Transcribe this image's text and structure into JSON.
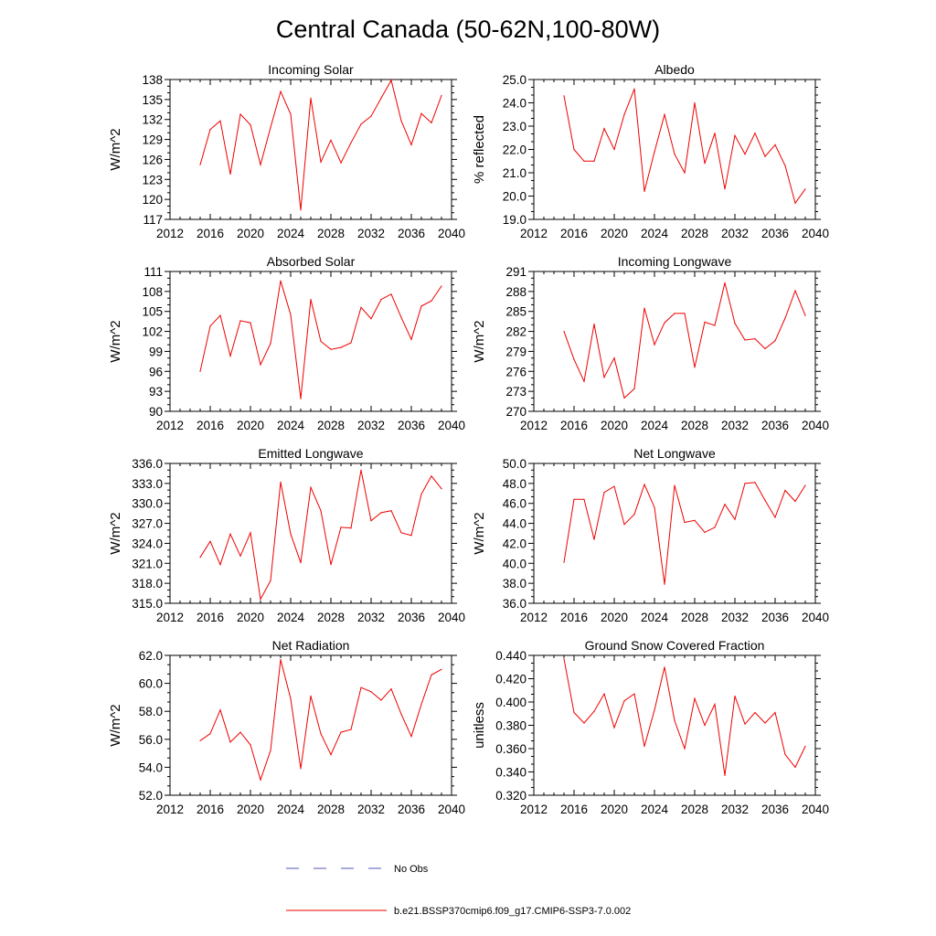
{
  "figure": {
    "title": "Central Canada (50-62N,100-80W)",
    "legend": {
      "placement": "bottom",
      "entries": [
        {
          "label": "No Obs",
          "color": "#5555bb",
          "style": "dashed"
        },
        {
          "label": "b.e21.BSSP370cmip6.f09_g17.CMIP6-SSP3-7.0.002",
          "color": "#ee0000",
          "style": "solid"
        }
      ]
    }
  },
  "chart_data": [
    {
      "type": "line",
      "title": "Incoming Solar",
      "ylabel": "W/m^2",
      "xlim": [
        2012,
        2040
      ],
      "xticks": [
        "2012",
        "2016",
        "2020",
        "2024",
        "2028",
        "2032",
        "2036",
        "2040"
      ],
      "ylim": [
        117,
        138
      ],
      "yticks": [
        "117",
        "120",
        "123",
        "126",
        "129",
        "132",
        "135",
        "138"
      ],
      "series": [
        {
          "color": "#ee0000",
          "x": [
            2015,
            2016,
            2017,
            2018,
            2019,
            2020,
            2021,
            2022,
            2023,
            2024,
            2025,
            2026,
            2027,
            2028,
            2029,
            2030,
            2031,
            2032,
            2033,
            2034,
            2035,
            2036,
            2037,
            2038,
            2039
          ],
          "y": [
            125.2,
            130.5,
            131.8,
            123.8,
            132.8,
            131.2,
            125.2,
            130.8,
            136.2,
            132.8,
            118.4,
            135.2,
            125.6,
            128.9,
            125.5,
            128.5,
            131.3,
            132.5,
            135.2,
            137.9,
            131.8,
            128.2,
            132.9,
            131.5,
            135.6
          ]
        }
      ]
    },
    {
      "type": "line",
      "title": "Albedo",
      "ylabel": "% reflected",
      "xlim": [
        2012,
        2040
      ],
      "xticks": [
        "2012",
        "2016",
        "2020",
        "2024",
        "2028",
        "2032",
        "2036",
        "2040"
      ],
      "ylim": [
        19.0,
        25.0
      ],
      "yticks": [
        "19.0",
        "20.0",
        "21.0",
        "22.0",
        "23.0",
        "24.0",
        "25.0"
      ],
      "series": [
        {
          "color": "#ee0000",
          "x": [
            2015,
            2016,
            2017,
            2018,
            2019,
            2020,
            2021,
            2022,
            2023,
            2024,
            2025,
            2026,
            2027,
            2028,
            2029,
            2030,
            2031,
            2032,
            2033,
            2034,
            2035,
            2036,
            2037,
            2038,
            2039
          ],
          "y": [
            24.3,
            22.0,
            21.5,
            21.5,
            22.9,
            22.0,
            23.5,
            24.6,
            20.2,
            21.9,
            23.5,
            21.8,
            21.0,
            24.0,
            21.4,
            22.7,
            20.3,
            22.6,
            21.8,
            22.7,
            21.7,
            22.2,
            21.3,
            19.7,
            20.3
          ]
        }
      ]
    },
    {
      "type": "line",
      "title": "Absorbed Solar",
      "ylabel": "W/m^2",
      "xlim": [
        2012,
        2040
      ],
      "xticks": [
        "2012",
        "2016",
        "2020",
        "2024",
        "2028",
        "2032",
        "2036",
        "2040"
      ],
      "ylim": [
        90,
        111
      ],
      "yticks": [
        "90",
        "93",
        "96",
        "99",
        "102",
        "105",
        "108",
        "111"
      ],
      "series": [
        {
          "color": "#ee0000",
          "x": [
            2015,
            2016,
            2017,
            2018,
            2019,
            2020,
            2021,
            2022,
            2023,
            2024,
            2025,
            2026,
            2027,
            2028,
            2029,
            2030,
            2031,
            2032,
            2033,
            2034,
            2035,
            2036,
            2037,
            2038,
            2039
          ],
          "y": [
            96.0,
            102.8,
            104.4,
            98.3,
            103.6,
            103.3,
            97.0,
            100.2,
            109.6,
            104.5,
            91.9,
            106.8,
            100.5,
            99.3,
            99.6,
            100.3,
            105.6,
            103.9,
            106.8,
            107.6,
            104.1,
            100.8,
            105.8,
            106.6,
            108.8
          ]
        }
      ]
    },
    {
      "type": "line",
      "title": "Incoming Longwave",
      "ylabel": "W/m^2",
      "xlim": [
        2012,
        2040
      ],
      "xticks": [
        "2012",
        "2016",
        "2020",
        "2024",
        "2028",
        "2032",
        "2036",
        "2040"
      ],
      "ylim": [
        270,
        291
      ],
      "yticks": [
        "270",
        "273",
        "276",
        "279",
        "282",
        "285",
        "288",
        "291"
      ],
      "series": [
        {
          "color": "#ee0000",
          "x": [
            2015,
            2016,
            2017,
            2018,
            2019,
            2020,
            2021,
            2022,
            2023,
            2024,
            2025,
            2026,
            2027,
            2028,
            2029,
            2030,
            2031,
            2032,
            2033,
            2034,
            2035,
            2036,
            2037,
            2038,
            2039
          ],
          "y": [
            282.0,
            277.8,
            274.5,
            283.1,
            275.1,
            278.0,
            272.0,
            273.4,
            285.5,
            280.0,
            283.3,
            284.7,
            284.7,
            276.6,
            283.4,
            282.9,
            289.3,
            283.2,
            280.7,
            280.9,
            279.4,
            280.6,
            284.0,
            288.1,
            284.4
          ]
        }
      ]
    },
    {
      "type": "line",
      "title": "Emitted Longwave",
      "ylabel": "W/m^2",
      "xlim": [
        2012,
        2040
      ],
      "xticks": [
        "2012",
        "2016",
        "2020",
        "2024",
        "2028",
        "2032",
        "2036",
        "2040"
      ],
      "ylim": [
        315.0,
        336.0
      ],
      "yticks": [
        "315.0",
        "318.0",
        "321.0",
        "324.0",
        "327.0",
        "330.0",
        "333.0",
        "336.0"
      ],
      "series": [
        {
          "color": "#ee0000",
          "x": [
            2015,
            2016,
            2017,
            2018,
            2019,
            2020,
            2021,
            2022,
            2023,
            2024,
            2025,
            2026,
            2027,
            2028,
            2029,
            2030,
            2031,
            2032,
            2033,
            2034,
            2035,
            2036,
            2037,
            2038,
            2039
          ],
          "y": [
            321.9,
            324.3,
            320.8,
            325.4,
            322.1,
            325.6,
            315.6,
            318.4,
            333.2,
            325.4,
            321.1,
            332.4,
            328.9,
            320.8,
            326.4,
            326.3,
            335.0,
            327.4,
            328.6,
            328.9,
            325.6,
            325.2,
            331.4,
            334.1,
            332.2
          ]
        }
      ]
    },
    {
      "type": "line",
      "title": "Net Longwave",
      "ylabel": "W/m^2",
      "xlim": [
        2012,
        2040
      ],
      "xticks": [
        "2012",
        "2016",
        "2020",
        "2024",
        "2028",
        "2032",
        "2036",
        "2040"
      ],
      "ylim": [
        36.0,
        50.0
      ],
      "yticks": [
        "36.0",
        "38.0",
        "40.0",
        "42.0",
        "44.0",
        "46.0",
        "48.0",
        "50.0"
      ],
      "series": [
        {
          "color": "#ee0000",
          "x": [
            2015,
            2016,
            2017,
            2018,
            2019,
            2020,
            2021,
            2022,
            2023,
            2024,
            2025,
            2026,
            2027,
            2028,
            2029,
            2030,
            2031,
            2032,
            2033,
            2034,
            2035,
            2036,
            2037,
            2038,
            2039
          ],
          "y": [
            40.1,
            46.4,
            46.4,
            42.4,
            47.1,
            47.7,
            43.9,
            44.9,
            47.9,
            45.6,
            37.9,
            47.8,
            44.1,
            44.3,
            43.1,
            43.6,
            45.9,
            44.4,
            48.0,
            48.1,
            46.3,
            44.6,
            47.3,
            46.2,
            47.8
          ]
        }
      ]
    },
    {
      "type": "line",
      "title": "Net Radiation",
      "ylabel": "W/m^2",
      "xlim": [
        2012,
        2040
      ],
      "xticks": [
        "2012",
        "2016",
        "2020",
        "2024",
        "2028",
        "2032",
        "2036",
        "2040"
      ],
      "ylim": [
        52.0,
        62.0
      ],
      "yticks": [
        "52.0",
        "54.0",
        "56.0",
        "58.0",
        "60.0",
        "62.0"
      ],
      "series": [
        {
          "color": "#ee0000",
          "x": [
            2015,
            2016,
            2017,
            2018,
            2019,
            2020,
            2021,
            2022,
            2023,
            2024,
            2025,
            2026,
            2027,
            2028,
            2029,
            2030,
            2031,
            2032,
            2033,
            2034,
            2035,
            2036,
            2037,
            2038,
            2039
          ],
          "y": [
            55.9,
            56.4,
            58.1,
            55.8,
            56.5,
            55.6,
            53.1,
            55.2,
            61.7,
            58.9,
            53.9,
            59.1,
            56.4,
            54.9,
            56.5,
            56.7,
            59.7,
            59.4,
            58.8,
            59.6,
            57.8,
            56.2,
            58.5,
            60.6,
            61.0
          ]
        }
      ]
    },
    {
      "type": "line",
      "title": "Ground Snow Covered Fraction",
      "ylabel": "unitless",
      "xlim": [
        2012,
        2040
      ],
      "xticks": [
        "2012",
        "2016",
        "2020",
        "2024",
        "2028",
        "2032",
        "2036",
        "2040"
      ],
      "ylim": [
        0.32,
        0.44
      ],
      "yticks": [
        "0.320",
        "0.340",
        "0.360",
        "0.380",
        "0.400",
        "0.420",
        "0.440"
      ],
      "series": [
        {
          "color": "#ee0000",
          "x": [
            2015,
            2016,
            2017,
            2018,
            2019,
            2020,
            2021,
            2022,
            2023,
            2024,
            2025,
            2026,
            2027,
            2028,
            2029,
            2030,
            2031,
            2032,
            2033,
            2034,
            2035,
            2036,
            2037,
            2038,
            2039
          ],
          "y": [
            0.437,
            0.391,
            0.382,
            0.392,
            0.407,
            0.378,
            0.401,
            0.407,
            0.362,
            0.393,
            0.43,
            0.384,
            0.36,
            0.403,
            0.38,
            0.398,
            0.337,
            0.405,
            0.381,
            0.391,
            0.382,
            0.391,
            0.355,
            0.344,
            0.362
          ]
        }
      ]
    }
  ]
}
